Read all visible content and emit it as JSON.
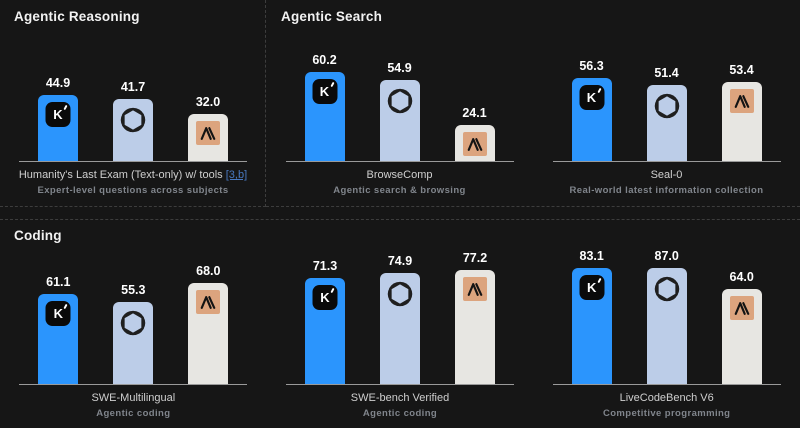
{
  "colors": {
    "background": "#161616",
    "panel_border_dashed": "#3d3d3d",
    "axis_line": "#9a9a9a",
    "value_label": "#ffffff",
    "benchmark_name": "#cfcfcf",
    "subtitle": "#80858c",
    "footnote_link": "#4878c0",
    "kimi_bar": "#2b95fd",
    "openai_bar": "#bccde8",
    "anthropic_bar": "#e7e6e2",
    "anthropic_logo_bg": "#dca47e",
    "kimi_logo_bg": "#0a0a0a"
  },
  "models": [
    {
      "id": "kimi",
      "icon": "kimi-k-icon",
      "bar_color": "#2b95fd"
    },
    {
      "id": "openai",
      "icon": "openai-icon",
      "bar_color": "#bccde8"
    },
    {
      "id": "anthropic",
      "icon": "anthropic-icon",
      "bar_color": "#e7e6e2",
      "logo_bg": "#dca47e"
    }
  ],
  "sections": [
    {
      "title": "Agentic Reasoning"
    },
    {
      "title": "Agentic Search"
    },
    {
      "title": "Coding"
    }
  ],
  "chart_data": [
    {
      "type": "bar",
      "section": "Agentic Reasoning",
      "title": "Humanity's Last Exam (Text-only) w/ tools",
      "link_suffix": "[3,b]",
      "subtitle": "Expert-level questions across subjects",
      "categories": [
        "Kimi",
        "OpenAI",
        "Anthropic"
      ],
      "values": [
        44.9,
        41.7,
        32.0
      ],
      "values_display": [
        "44.9",
        "41.7",
        "32.0"
      ],
      "ylim": [
        0,
        90
      ],
      "grid": false,
      "legend": "none"
    },
    {
      "type": "bar",
      "section": "Agentic Search",
      "title": "BrowseComp",
      "subtitle": "Agentic search & browsing",
      "categories": [
        "Kimi",
        "OpenAI",
        "Anthropic"
      ],
      "values": [
        60.2,
        54.9,
        24.1
      ],
      "values_display": [
        "60.2",
        "54.9",
        "24.1"
      ],
      "ylim": [
        0,
        90
      ],
      "grid": false,
      "legend": "none"
    },
    {
      "type": "bar",
      "section": "Agentic Search",
      "title": "Seal-0",
      "subtitle": "Real-world latest information collection",
      "categories": [
        "Kimi",
        "OpenAI",
        "Anthropic"
      ],
      "values": [
        56.3,
        51.4,
        53.4
      ],
      "values_display": [
        "56.3",
        "51.4",
        "53.4"
      ],
      "ylim": [
        0,
        90
      ],
      "grid": false,
      "legend": "none"
    },
    {
      "type": "bar",
      "section": "Coding",
      "title": "SWE-Multilingual",
      "subtitle": "Agentic coding",
      "categories": [
        "Kimi",
        "OpenAI",
        "Anthropic"
      ],
      "values": [
        61.1,
        55.3,
        68.0
      ],
      "values_display": [
        "61.1",
        "55.3",
        "68.0"
      ],
      "ylim": [
        0,
        90
      ],
      "grid": false,
      "legend": "none"
    },
    {
      "type": "bar",
      "section": "Coding",
      "title": "SWE-bench Verified",
      "subtitle": "Agentic coding",
      "categories": [
        "Kimi",
        "OpenAI",
        "Anthropic"
      ],
      "values": [
        71.3,
        74.9,
        77.2
      ],
      "values_display": [
        "71.3",
        "74.9",
        "77.2"
      ],
      "ylim": [
        0,
        90
      ],
      "grid": false,
      "legend": "none"
    },
    {
      "type": "bar",
      "section": "Coding",
      "title": "LiveCodeBench V6",
      "subtitle": "Competitive programming",
      "categories": [
        "Kimi",
        "OpenAI",
        "Anthropic"
      ],
      "values": [
        83.1,
        87.0,
        64.0
      ],
      "values_display": [
        "83.1",
        "87.0",
        "64.0"
      ],
      "ylim": [
        0,
        90
      ],
      "grid": false,
      "legend": "none"
    }
  ]
}
